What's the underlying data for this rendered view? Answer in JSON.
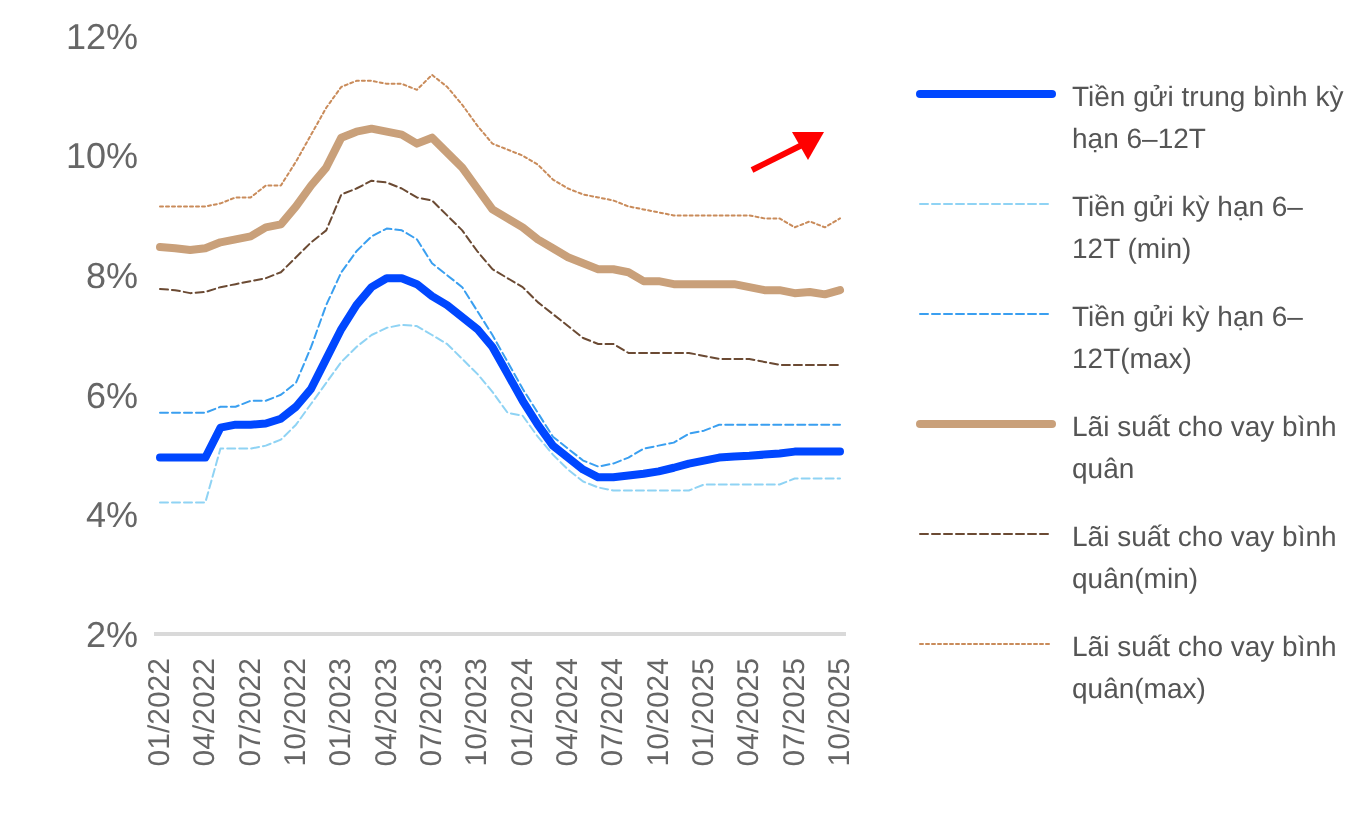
{
  "chart_data": {
    "type": "line",
    "categories": [
      "01/2022",
      null,
      null,
      "04/2022",
      null,
      null,
      "07/2022",
      null,
      null,
      "10/2022",
      null,
      null,
      "01/2023",
      null,
      null,
      "04/2023",
      null,
      null,
      "07/2023",
      null,
      null,
      "10/2023",
      null,
      null,
      "01/2024",
      null,
      null,
      "04/2024",
      null,
      null,
      "07/2024",
      null,
      null,
      "10/2024",
      null,
      null,
      "01/2025",
      null,
      null,
      "04/2025",
      null,
      null,
      "07/2025",
      null,
      null,
      "10/2025"
    ],
    "ylim": [
      2,
      12
    ],
    "yticks": [
      {
        "value": 2,
        "label": "2%"
      },
      {
        "value": 4,
        "label": "4%"
      },
      {
        "value": 6,
        "label": "6%"
      },
      {
        "value": 8,
        "label": "8%"
      },
      {
        "value": 10,
        "label": "10%"
      },
      {
        "value": 12,
        "label": "12%"
      }
    ],
    "legend": "right",
    "marker": "none",
    "series": [
      {
        "name": "Tiền gửi trung bình kỳ hạn 6–12T",
        "color": "#0047ff",
        "line_style": "solid",
        "values": [
          4.95,
          4.95,
          4.95,
          4.95,
          5.45,
          5.5,
          5.5,
          5.52,
          5.6,
          5.8,
          6.1,
          6.6,
          7.1,
          7.5,
          7.8,
          7.95,
          7.95,
          7.85,
          7.65,
          7.5,
          7.3,
          7.1,
          6.8,
          6.35,
          5.9,
          5.5,
          5.15,
          4.95,
          4.75,
          4.62,
          4.62,
          4.65,
          4.68,
          4.72,
          4.78,
          4.85,
          4.9,
          4.95,
          4.97,
          4.98,
          5.0,
          5.02,
          5.05,
          5.05,
          5.05,
          5.05
        ]
      },
      {
        "name": "Tiền gửi kỳ hạn 6–12T (min)",
        "color": "#8fd3f4",
        "line_style": "dashed",
        "values": [
          4.2,
          4.2,
          4.2,
          4.2,
          5.1,
          5.1,
          5.1,
          5.15,
          5.25,
          5.5,
          5.85,
          6.2,
          6.55,
          6.8,
          7.0,
          7.12,
          7.17,
          7.15,
          7.0,
          6.85,
          6.6,
          6.35,
          6.05,
          5.7,
          5.65,
          5.3,
          5.0,
          4.75,
          4.55,
          4.45,
          4.4,
          4.4,
          4.4,
          4.4,
          4.4,
          4.4,
          4.5,
          4.5,
          4.5,
          4.5,
          4.5,
          4.5,
          4.6,
          4.6,
          4.6,
          4.6
        ]
      },
      {
        "name": "Tiền gửi kỳ hạn 6–12T(max)",
        "color": "#3a9ff0",
        "line_style": "dashed",
        "values": [
          5.7,
          5.7,
          5.7,
          5.7,
          5.8,
          5.8,
          5.9,
          5.9,
          6.0,
          6.2,
          6.8,
          7.5,
          8.05,
          8.4,
          8.65,
          8.78,
          8.75,
          8.6,
          8.2,
          8.0,
          7.8,
          7.4,
          7.0,
          6.55,
          6.1,
          5.7,
          5.3,
          5.1,
          4.9,
          4.8,
          4.85,
          4.95,
          5.1,
          5.15,
          5.2,
          5.35,
          5.4,
          5.5,
          5.5,
          5.5,
          5.5,
          5.5,
          5.5,
          5.5,
          5.5,
          5.5
        ]
      },
      {
        "name": "Lãi suất cho vay bình quân",
        "color": "#c9a07a",
        "line_style": "solid",
        "values": [
          8.47,
          8.45,
          8.42,
          8.45,
          8.55,
          8.6,
          8.65,
          8.8,
          8.85,
          9.15,
          9.5,
          9.8,
          10.3,
          10.4,
          10.45,
          10.4,
          10.35,
          10.2,
          10.3,
          10.05,
          9.8,
          9.45,
          9.1,
          8.95,
          8.8,
          8.6,
          8.45,
          8.3,
          8.2,
          8.1,
          8.1,
          8.05,
          7.9,
          7.9,
          7.85,
          7.85,
          7.85,
          7.85,
          7.85,
          7.8,
          7.75,
          7.75,
          7.7,
          7.72,
          7.68,
          7.75
        ]
      },
      {
        "name": "Lãi suất cho vay bình quân(min)",
        "color": "#6b4a33",
        "line_style": "dashed",
        "values": [
          7.77,
          7.75,
          7.7,
          7.72,
          7.8,
          7.85,
          7.9,
          7.95,
          8.05,
          8.3,
          8.55,
          8.75,
          9.35,
          9.45,
          9.58,
          9.55,
          9.45,
          9.3,
          9.25,
          9.0,
          8.75,
          8.4,
          8.1,
          7.95,
          7.8,
          7.55,
          7.35,
          7.15,
          6.95,
          6.85,
          6.85,
          6.7,
          6.7,
          6.7,
          6.7,
          6.7,
          6.65,
          6.6,
          6.6,
          6.6,
          6.55,
          6.5,
          6.5,
          6.5,
          6.5,
          6.5
        ]
      },
      {
        "name": "Lãi suất cho vay bình quân(max)",
        "color": "#c98b5a",
        "line_style": "dotted",
        "values": [
          9.15,
          9.15,
          9.15,
          9.15,
          9.2,
          9.3,
          9.3,
          9.5,
          9.5,
          9.9,
          10.35,
          10.8,
          11.15,
          11.25,
          11.25,
          11.2,
          11.2,
          11.1,
          11.35,
          11.15,
          10.85,
          10.5,
          10.2,
          10.1,
          10.0,
          9.85,
          9.6,
          9.45,
          9.35,
          9.3,
          9.25,
          9.15,
          9.1,
          9.05,
          9.0,
          9.0,
          9.0,
          9.0,
          9.0,
          9.0,
          8.95,
          8.95,
          8.8,
          8.9,
          8.8,
          8.95
        ]
      }
    ]
  }
}
